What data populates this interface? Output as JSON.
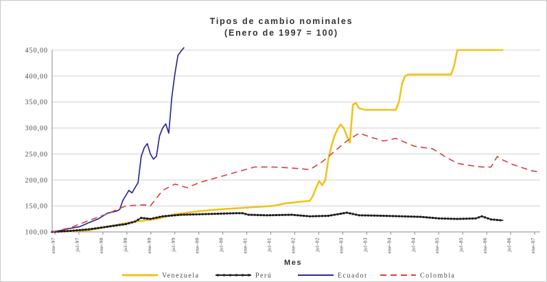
{
  "chart_data": {
    "type": "line",
    "title": "Tipos de cambio nominales",
    "subtitle": "(Enero de 1997 = 100)",
    "xlabel": "Mes",
    "ylabel": "",
    "ylim": [
      100,
      450
    ],
    "yticks": [
      "100,00",
      "150,00",
      "200,00",
      "250,00",
      "300,00",
      "350,00",
      "400,00",
      "450,00"
    ],
    "xticks": [
      "ene-97",
      "jul-97",
      "ene-98",
      "jul-98",
      "ene-99",
      "jul-99",
      "ene-00",
      "jul-00",
      "ene-01",
      "jul-01",
      "ene-02",
      "jul-02",
      "ene-03",
      "jul-03",
      "ene-04",
      "jul-04",
      "ene-05",
      "jul-05",
      "ene-06",
      "jul-06",
      "ene-07"
    ],
    "grid": "horizontal",
    "legend_position": "bottom",
    "series": [
      {
        "name": "Venezuela",
        "color": "#f2c21a",
        "style": "solid",
        "points": [
          [
            0,
            100
          ],
          [
            6,
            101
          ],
          [
            12,
            103
          ],
          [
            18,
            110
          ],
          [
            24,
            117
          ],
          [
            30,
            122
          ],
          [
            34,
            125
          ],
          [
            40,
            134
          ],
          [
            48,
            140
          ],
          [
            56,
            144
          ],
          [
            64,
            147
          ],
          [
            72,
            150
          ],
          [
            76,
            155
          ],
          [
            84,
            160
          ],
          [
            85,
            170
          ],
          [
            86,
            185
          ],
          [
            87,
            198
          ],
          [
            88,
            190
          ],
          [
            89,
            200
          ],
          [
            90,
            240
          ],
          [
            91,
            265
          ],
          [
            92,
            285
          ],
          [
            93,
            298
          ],
          [
            94,
            307
          ],
          [
            95,
            300
          ],
          [
            96,
            285
          ],
          [
            97,
            272
          ],
          [
            98,
            345
          ],
          [
            99,
            348
          ],
          [
            100,
            338
          ],
          [
            102,
            335
          ],
          [
            112,
            335
          ],
          [
            113,
            350
          ],
          [
            114,
            385
          ],
          [
            115,
            400
          ],
          [
            116,
            403
          ],
          [
            130,
            403
          ],
          [
            131,
            420
          ],
          [
            132,
            450
          ],
          [
            147,
            450
          ]
        ]
      },
      {
        "name": "Perú",
        "color": "#1a1a1a",
        "style": "solid",
        "points": [
          [
            0,
            100
          ],
          [
            6,
            102
          ],
          [
            12,
            105
          ],
          [
            18,
            110
          ],
          [
            24,
            115
          ],
          [
            27,
            120
          ],
          [
            29,
            127
          ],
          [
            32,
            125
          ],
          [
            36,
            130
          ],
          [
            42,
            133
          ],
          [
            48,
            134
          ],
          [
            54,
            135
          ],
          [
            60,
            136
          ],
          [
            62,
            136
          ],
          [
            64,
            133
          ],
          [
            70,
            132
          ],
          [
            78,
            133
          ],
          [
            84,
            130
          ],
          [
            90,
            131
          ],
          [
            94,
            135
          ],
          [
            96,
            137
          ],
          [
            100,
            132
          ],
          [
            108,
            131
          ],
          [
            114,
            130
          ],
          [
            120,
            129
          ],
          [
            126,
            126
          ],
          [
            132,
            125
          ],
          [
            138,
            126
          ],
          [
            140,
            130
          ],
          [
            143,
            124
          ],
          [
            147,
            122
          ]
        ]
      },
      {
        "name": "Ecuador",
        "color": "#2b2b8f",
        "style": "solid",
        "points": [
          [
            0,
            100
          ],
          [
            3,
            103
          ],
          [
            6,
            107
          ],
          [
            9,
            110
          ],
          [
            12,
            118
          ],
          [
            15,
            125
          ],
          [
            18,
            136
          ],
          [
            21,
            140
          ],
          [
            22,
            143
          ],
          [
            23,
            160
          ],
          [
            24,
            170
          ],
          [
            25,
            180
          ],
          [
            26,
            175
          ],
          [
            27,
            185
          ],
          [
            28,
            195
          ],
          [
            29,
            245
          ],
          [
            30,
            262
          ],
          [
            31,
            270
          ],
          [
            32,
            250
          ],
          [
            33,
            240
          ],
          [
            34,
            246
          ],
          [
            35,
            285
          ],
          [
            36,
            300
          ],
          [
            37,
            308
          ],
          [
            38,
            290
          ],
          [
            39,
            360
          ],
          [
            40,
            405
          ],
          [
            41,
            440
          ],
          [
            42,
            448
          ],
          [
            43,
            455
          ]
        ]
      },
      {
        "name": "Colombia",
        "color": "#e03a3a",
        "style": "dashed",
        "points": [
          [
            0,
            100
          ],
          [
            6,
            108
          ],
          [
            12,
            122
          ],
          [
            18,
            135
          ],
          [
            24,
            150
          ],
          [
            30,
            152
          ],
          [
            32,
            150
          ],
          [
            36,
            180
          ],
          [
            40,
            192
          ],
          [
            44,
            185
          ],
          [
            48,
            195
          ],
          [
            54,
            205
          ],
          [
            60,
            215
          ],
          [
            66,
            225
          ],
          [
            72,
            225
          ],
          [
            78,
            223
          ],
          [
            84,
            220
          ],
          [
            88,
            235
          ],
          [
            92,
            255
          ],
          [
            96,
            275
          ],
          [
            100,
            290
          ],
          [
            104,
            282
          ],
          [
            108,
            275
          ],
          [
            112,
            280
          ],
          [
            118,
            265
          ],
          [
            124,
            260
          ],
          [
            128,
            245
          ],
          [
            132,
            232
          ],
          [
            136,
            228
          ],
          [
            140,
            225
          ],
          [
            143,
            225
          ],
          [
            145,
            245
          ],
          [
            147,
            238
          ],
          [
            150,
            230
          ],
          [
            156,
            218
          ],
          [
            159,
            215
          ]
        ]
      }
    ],
    "x_domain": [
      0,
      159
    ]
  }
}
